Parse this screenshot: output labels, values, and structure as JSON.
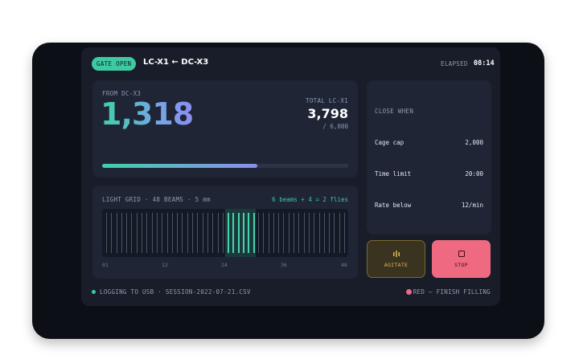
{
  "header": {
    "gate_badge": "GATE OPEN",
    "title": "LC-X1 ← DC-X3",
    "elapsed_label": "ELAPSED",
    "elapsed_value": "08:14"
  },
  "count": {
    "from_label": "FROM DC-X3",
    "value": "1,318",
    "total_label": "TOTAL LC-X1",
    "total_value": "3,798",
    "total_cap": "/ 6,000",
    "progress": 0.63
  },
  "light_grid": {
    "label": "LIGHT GRID · 48 BEAMS · 5 mm",
    "status": "6 beams + 4 = 2 flies",
    "beam_count": 48,
    "active_beams": [
      25,
      26,
      27,
      28,
      29,
      30
    ],
    "ticks": [
      "01",
      "12",
      "24",
      "36",
      "48"
    ]
  },
  "close_when": {
    "title": "CLOSE WHEN",
    "conditions": [
      {
        "label": "Cage cap",
        "value": "2,000"
      },
      {
        "label": "Time limit",
        "value": "20:00"
      },
      {
        "label": "Rate below",
        "value": "12/min"
      }
    ]
  },
  "buttons": {
    "agitate": "AGITATE",
    "stop": "STOP"
  },
  "footer": {
    "left": "LOGGING TO USB · SESSION-2022-07-21.CSV",
    "right": "RED — FINISH FILLING"
  },
  "colors": {
    "accent_green": "#3ec9a3",
    "accent_violet": "#8b8df0",
    "stop_red": "#ef6a80",
    "agitate_amber": "#e2b957"
  }
}
